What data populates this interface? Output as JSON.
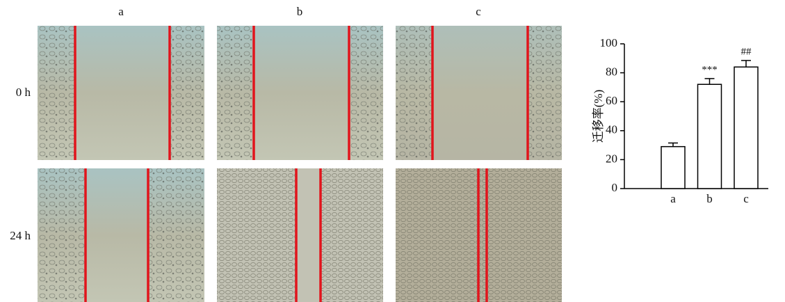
{
  "figure": {
    "columns": [
      "a",
      "b",
      "c"
    ],
    "rows": [
      "0 h",
      "24 h"
    ]
  },
  "chart_data": {
    "type": "bar",
    "y_label": "迁移率(%)",
    "categories": [
      "a",
      "b",
      "c"
    ],
    "values": [
      29,
      72,
      84
    ],
    "errors": [
      2.5,
      4,
      4.5
    ],
    "value_annotations": [
      null,
      "***",
      "##"
    ],
    "color": "#ffffff",
    "ylim": [
      0,
      100
    ],
    "yticks": [
      0,
      20,
      40,
      60,
      80,
      100
    ],
    "grid": false
  }
}
